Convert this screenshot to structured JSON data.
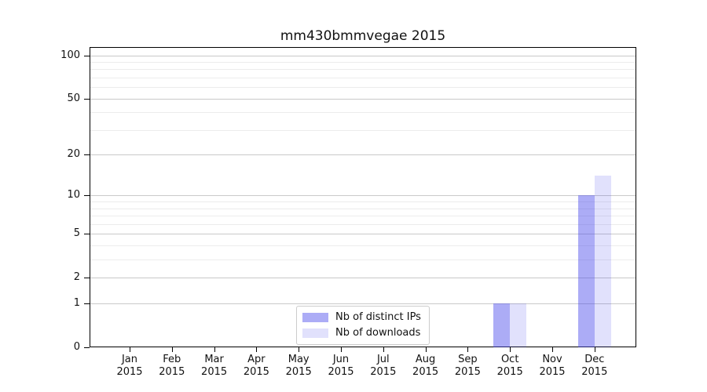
{
  "title": "mm430bmmvegae 2015",
  "chart_data": {
    "type": "bar",
    "title": "mm430bmmvegae 2015",
    "categories": [
      "Jan 2015",
      "Feb 2015",
      "Mar 2015",
      "Apr 2015",
      "May 2015",
      "Jun 2015",
      "Jul 2015",
      "Aug 2015",
      "Sep 2015",
      "Oct 2015",
      "Nov 2015",
      "Dec 2015"
    ],
    "months": [
      "Jan",
      "Feb",
      "Mar",
      "Apr",
      "May",
      "Jun",
      "Jul",
      "Aug",
      "Sep",
      "Oct",
      "Nov",
      "Dec"
    ],
    "year": "2015",
    "series": [
      {
        "name": "Nb of distinct IPs",
        "color": "#a5a5f5",
        "fill": "rgba(70,70,235,0.45)",
        "values": [
          0,
          0,
          0,
          0,
          0,
          0,
          0,
          0,
          0,
          1,
          0,
          10
        ]
      },
      {
        "name": "Nb of downloads",
        "color": "#dcdcfa",
        "fill": "rgba(70,70,235,0.16)",
        "values": [
          0,
          0,
          0,
          0,
          0,
          0,
          0,
          0,
          0,
          1,
          0,
          14
        ]
      }
    ],
    "xlabel": "",
    "ylabel": "",
    "yscale": "log1p",
    "ylim": [
      0,
      114
    ],
    "yticks": [
      0,
      1,
      2,
      5,
      10,
      20,
      50,
      100
    ],
    "yticks_minor": [
      3,
      4,
      6,
      7,
      8,
      9,
      30,
      40,
      60,
      70,
      80,
      90
    ],
    "grid": "horizontal, major and minor, on",
    "legend_position": "lower center"
  },
  "colors": {
    "major_grid": "#c9c9c9",
    "minor_grid": "#ececec",
    "spine": "#000000",
    "text": "#111111",
    "legend_border": "#cccccc",
    "background": "#ffffff"
  }
}
